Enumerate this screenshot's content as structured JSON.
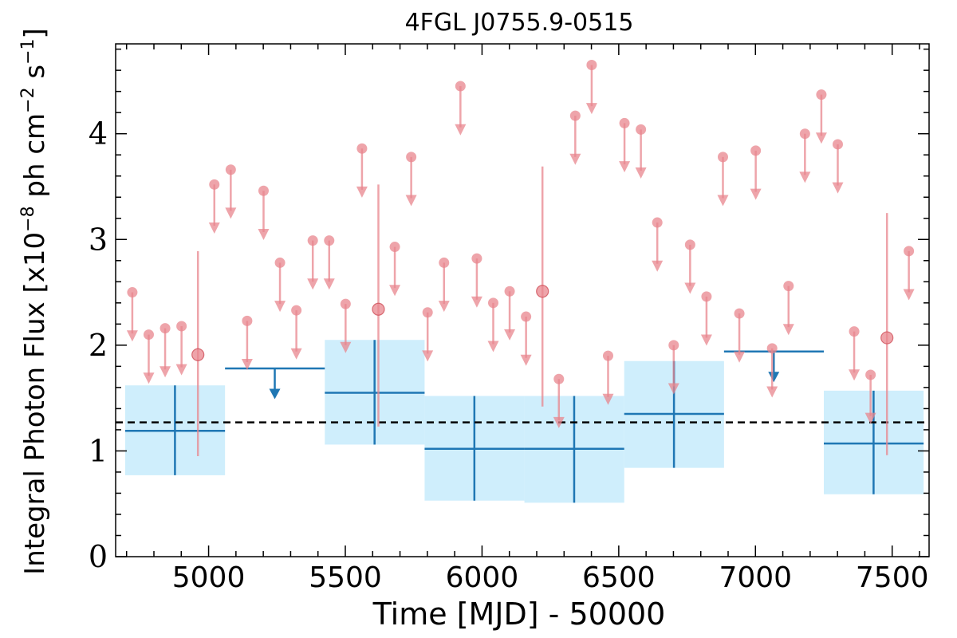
{
  "chart_data": {
    "type": "scatter",
    "title": "4FGL J0755.9-0515",
    "xlabel": "Time [MJD] - 50000",
    "ylabel_parts": {
      "main": "Integral Photon Flux [x10",
      "exp1": "−8",
      "mid": " ph cm",
      "exp2": "−2",
      "mid2": " s",
      "exp3": "−1",
      "end": "]"
    },
    "xlim": [
      4660,
      7635
    ],
    "ylim": [
      0,
      4.85
    ],
    "x_ticks": [
      5000,
      5500,
      6000,
      6500,
      7000,
      7500
    ],
    "y_ticks": [
      0,
      1,
      2,
      3,
      4
    ],
    "mean_flux": 1.27,
    "colors": {
      "annual_fill": "#cfeefc",
      "annual_line": "#1f77b4",
      "monthly": "#e8868d",
      "mean": "#000000"
    },
    "series": [
      {
        "type": "annual_bins",
        "bins": [
          {
            "x0": 4695,
            "x1": 5060,
            "center": 4877,
            "flux": 1.19,
            "lo": 0.77,
            "hi": 1.62
          },
          {
            "x0": 5060,
            "x1": 5425,
            "center": 5242,
            "upper_limit": 1.78
          },
          {
            "x0": 5425,
            "x1": 5790,
            "center": 5607,
            "flux": 1.55,
            "lo": 1.06,
            "hi": 2.05
          },
          {
            "x0": 5790,
            "x1": 6155,
            "center": 5972,
            "flux": 1.02,
            "lo": 0.53,
            "hi": 1.52
          },
          {
            "x0": 6155,
            "x1": 6520,
            "center": 6337,
            "flux": 1.02,
            "lo": 0.51,
            "hi": 1.52
          },
          {
            "x0": 6520,
            "x1": 6885,
            "center": 6702,
            "flux": 1.35,
            "lo": 0.84,
            "hi": 1.85
          },
          {
            "x0": 6885,
            "x1": 7250,
            "center": 7067,
            "upper_limit": 1.94
          },
          {
            "x0": 7250,
            "x1": 7615,
            "center": 7432,
            "flux": 1.07,
            "lo": 0.59,
            "hi": 1.57
          }
        ]
      },
      {
        "type": "monthly_upper_limits",
        "points": [
          {
            "x": 4721,
            "y": 2.5
          },
          {
            "x": 4781,
            "y": 2.1
          },
          {
            "x": 4841,
            "y": 2.16
          },
          {
            "x": 4901,
            "y": 2.18
          },
          {
            "x": 5021,
            "y": 3.52
          },
          {
            "x": 5081,
            "y": 3.66
          },
          {
            "x": 5141,
            "y": 2.23
          },
          {
            "x": 5201,
            "y": 3.46
          },
          {
            "x": 5261,
            "y": 2.78
          },
          {
            "x": 5321,
            "y": 2.33
          },
          {
            "x": 5381,
            "y": 2.99
          },
          {
            "x": 5441,
            "y": 2.99
          },
          {
            "x": 5501,
            "y": 2.39
          },
          {
            "x": 5561,
            "y": 3.86
          },
          {
            "x": 5681,
            "y": 2.93
          },
          {
            "x": 5741,
            "y": 3.78
          },
          {
            "x": 5801,
            "y": 2.31
          },
          {
            "x": 5861,
            "y": 2.78
          },
          {
            "x": 5921,
            "y": 4.45
          },
          {
            "x": 5981,
            "y": 2.82
          },
          {
            "x": 6041,
            "y": 2.4
          },
          {
            "x": 6101,
            "y": 2.51
          },
          {
            "x": 6161,
            "y": 2.27
          },
          {
            "x": 6281,
            "y": 1.68
          },
          {
            "x": 6341,
            "y": 4.17
          },
          {
            "x": 6401,
            "y": 4.65
          },
          {
            "x": 6461,
            "y": 1.9
          },
          {
            "x": 6521,
            "y": 4.1
          },
          {
            "x": 6581,
            "y": 4.04
          },
          {
            "x": 6641,
            "y": 3.16
          },
          {
            "x": 6701,
            "y": 2.0
          },
          {
            "x": 6761,
            "y": 2.95
          },
          {
            "x": 6821,
            "y": 2.46
          },
          {
            "x": 6881,
            "y": 3.78
          },
          {
            "x": 6941,
            "y": 2.3
          },
          {
            "x": 7001,
            "y": 3.84
          },
          {
            "x": 7061,
            "y": 1.97
          },
          {
            "x": 7121,
            "y": 2.56
          },
          {
            "x": 7181,
            "y": 4.0
          },
          {
            "x": 7241,
            "y": 4.37
          },
          {
            "x": 7301,
            "y": 3.9
          },
          {
            "x": 7361,
            "y": 2.13
          },
          {
            "x": 7421,
            "y": 1.72
          },
          {
            "x": 7561,
            "y": 2.89
          }
        ]
      },
      {
        "type": "monthly_detections",
        "points": [
          {
            "x": 4961,
            "y": 1.91,
            "lo": 0.95,
            "hi": 2.89
          },
          {
            "x": 5621,
            "y": 2.34,
            "lo": 1.23,
            "hi": 3.52
          },
          {
            "x": 6221,
            "y": 2.51,
            "lo": 1.42,
            "hi": 3.69
          },
          {
            "x": 7481,
            "y": 2.07,
            "lo": 0.96,
            "hi": 3.25
          }
        ]
      }
    ]
  }
}
